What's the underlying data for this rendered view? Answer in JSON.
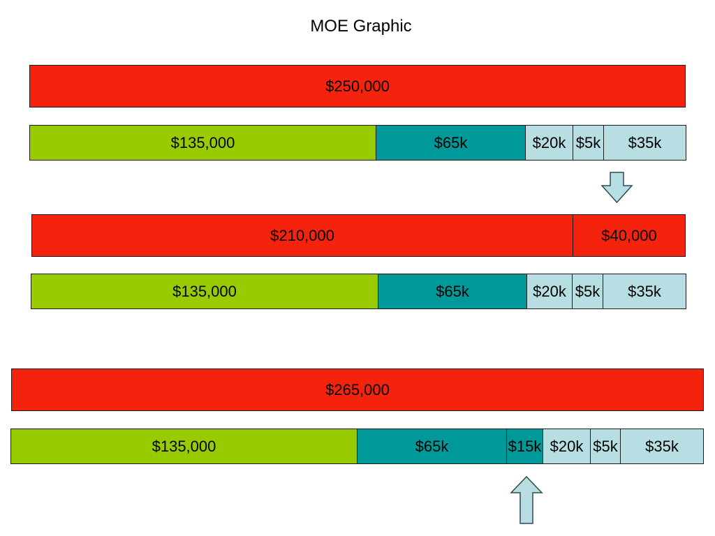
{
  "title": "MOE Graphic",
  "colors": {
    "red": "#f5230d",
    "green": "#99cc00",
    "teal": "#00999a",
    "light_blue": "#b7dfe3"
  },
  "bars": [
    {
      "segments": [
        {
          "label": "$250,000",
          "color": "red"
        }
      ]
    },
    {
      "segments": [
        {
          "label": "$135,000",
          "color": "green"
        },
        {
          "label": "$65k",
          "color": "teal"
        },
        {
          "label": "$20k",
          "color": "light_blue"
        },
        {
          "label": "$5k",
          "color": "light_blue"
        },
        {
          "label": "$35k",
          "color": "light_blue"
        }
      ]
    },
    {
      "segments": [
        {
          "label": "$210,000",
          "color": "red"
        },
        {
          "label": "$40,000",
          "color": "red"
        }
      ]
    },
    {
      "segments": [
        {
          "label": "$135,000",
          "color": "green"
        },
        {
          "label": "$65k",
          "color": "teal"
        },
        {
          "label": "$20k",
          "color": "light_blue"
        },
        {
          "label": "$5k",
          "color": "light_blue"
        },
        {
          "label": "$35k",
          "color": "light_blue"
        }
      ]
    },
    {
      "segments": [
        {
          "label": "$265,000",
          "color": "red"
        }
      ]
    },
    {
      "segments": [
        {
          "label": "$135,000",
          "color": "green"
        },
        {
          "label": "$65k",
          "color": "teal"
        },
        {
          "label": "$15k",
          "color": "teal"
        },
        {
          "label": "$20k",
          "color": "light_blue"
        },
        {
          "label": "$5k",
          "color": "light_blue"
        },
        {
          "label": "$35k",
          "color": "light_blue"
        }
      ]
    }
  ],
  "arrows": [
    {
      "name": "down-arrow-icon",
      "direction": "down"
    },
    {
      "name": "up-arrow-icon",
      "direction": "up"
    }
  ]
}
